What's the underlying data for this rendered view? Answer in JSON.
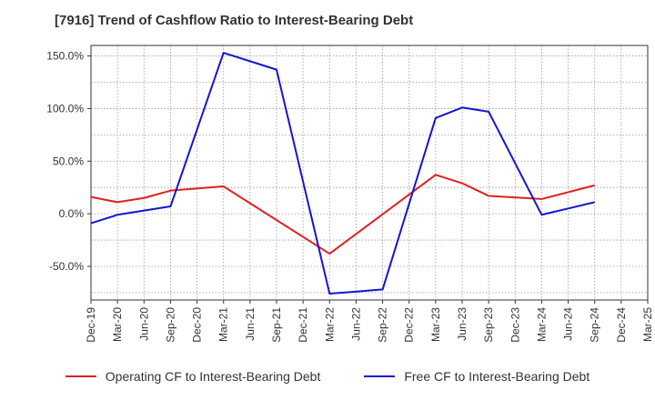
{
  "chart_data": {
    "type": "line",
    "title": "[7916]  Trend of Cashflow Ratio to Interest-Bearing Debt",
    "xlabel": "",
    "ylabel": "",
    "categories": [
      "Dec-19",
      "Mar-20",
      "Jun-20",
      "Sep-20",
      "Dec-20",
      "Mar-21",
      "Jun-21",
      "Sep-21",
      "Dec-21",
      "Mar-22",
      "Jun-22",
      "Sep-22",
      "Dec-22",
      "Mar-23",
      "Jun-23",
      "Sep-23",
      "Dec-23",
      "Mar-24",
      "Jun-24",
      "Sep-24",
      "Dec-24",
      "Mar-25"
    ],
    "ylim": [
      -82,
      160
    ],
    "yticks": [
      150,
      100,
      50,
      0,
      -50
    ],
    "ytick_labels": [
      "150.0%",
      "100.0%",
      "50.0%",
      "0.0%",
      "-50.0%"
    ],
    "grid": true,
    "legend_position": "bottom",
    "series": [
      {
        "name": "Operating CF to Interest-Bearing Debt",
        "color": "#e02020",
        "values": [
          16,
          11,
          15,
          22,
          null,
          26,
          null,
          null,
          null,
          -38,
          null,
          null,
          null,
          37,
          29,
          17,
          null,
          14,
          null,
          27,
          null,
          null
        ]
      },
      {
        "name": "Free CF to Interest-Bearing Debt",
        "color": "#1515d0",
        "values": [
          -9,
          -1,
          null,
          7,
          null,
          153,
          null,
          137,
          null,
          -76,
          null,
          -72,
          null,
          91,
          101,
          97,
          null,
          -1,
          null,
          11,
          null,
          null
        ]
      }
    ]
  }
}
